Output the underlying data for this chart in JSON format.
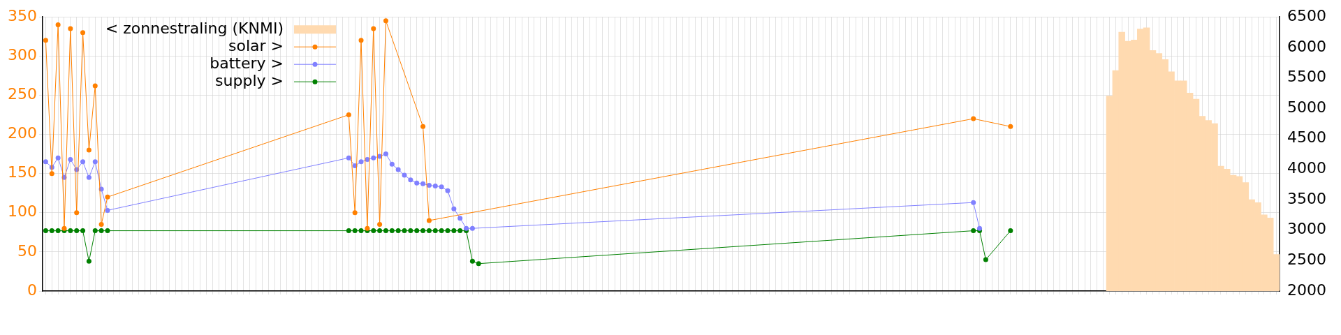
{
  "chart_data": {
    "type": "line",
    "categories": [
      null,
      null,
      null,
      null,
      null,
      null,
      null,
      null,
      null,
      null,
      null,
      null,
      null,
      null,
      null,
      null,
      null,
      null,
      null,
      null,
      null,
      null,
      null,
      null,
      null,
      null,
      null,
      null,
      null,
      null,
      null,
      null,
      null,
      null,
      null,
      null,
      null,
      null,
      null,
      null,
      null,
      null,
      null,
      null,
      null,
      null,
      null,
      null,
      null,
      null,
      null,
      null,
      null,
      null,
      null,
      null,
      null,
      null,
      null,
      null,
      null,
      null,
      null,
      null,
      null,
      null,
      null,
      null,
      null,
      null,
      null,
      null,
      null,
      null,
      null,
      null,
      null,
      null,
      null,
      null,
      null,
      null,
      null,
      null,
      null,
      null,
      null,
      null,
      null,
      null,
      null,
      null,
      null,
      null,
      null,
      null,
      null,
      null,
      null,
      null,
      null,
      null,
      null,
      null,
      null,
      null,
      null,
      null,
      null,
      null,
      null,
      null,
      null,
      null,
      null,
      null,
      null,
      null,
      null,
      null,
      null,
      null,
      null,
      null,
      null,
      null,
      null,
      null,
      null,
      null,
      null,
      null,
      null,
      null,
      null,
      null,
      null,
      null,
      null,
      null,
      null,
      null,
      null,
      null,
      null,
      null,
      null,
      null,
      null,
      null,
      null,
      null,
      null,
      null,
      null,
      null,
      null,
      null,
      null,
      null,
      null,
      null,
      null,
      null,
      null,
      null,
      null,
      null,
      null,
      null,
      null,
      null,
      null,
      null,
      null,
      null,
      null,
      null,
      null,
      null,
      null,
      null,
      null,
      null,
      null,
      null,
      null,
      null,
      null,
      null,
      null,
      null,
      null,
      null,
      null,
      null,
      null,
      null,
      null,
      null
    ],
    "series": [
      {
        "name": "< zonnestraling (KNMI)",
        "type": "bar",
        "axis": "y2",
        "color": "#ffdab0",
        "values": [
          null,
          null,
          null,
          null,
          null,
          null,
          null,
          null,
          null,
          null,
          null,
          null,
          null,
          null,
          null,
          null,
          null,
          null,
          null,
          null,
          null,
          null,
          null,
          null,
          null,
          null,
          null,
          null,
          null,
          null,
          null,
          null,
          null,
          null,
          null,
          null,
          null,
          null,
          null,
          null,
          null,
          null,
          null,
          null,
          null,
          null,
          null,
          null,
          null,
          null,
          null,
          null,
          null,
          null,
          null,
          null,
          null,
          null,
          null,
          null,
          null,
          null,
          null,
          null,
          null,
          null,
          null,
          null,
          null,
          null,
          null,
          null,
          null,
          null,
          null,
          null,
          null,
          null,
          null,
          null,
          null,
          null,
          null,
          null,
          null,
          null,
          null,
          null,
          null,
          null,
          null,
          null,
          null,
          null,
          null,
          null,
          null,
          null,
          null,
          null,
          null,
          null,
          null,
          null,
          null,
          null,
          null,
          null,
          null,
          null,
          null,
          null,
          null,
          null,
          null,
          null,
          null,
          null,
          null,
          null,
          null,
          null,
          null,
          null,
          null,
          null,
          null,
          null,
          null,
          null,
          null,
          null,
          null,
          null,
          null,
          null,
          null,
          null,
          null,
          null,
          null,
          null,
          null,
          null,
          null,
          null,
          null,
          null,
          null,
          null,
          null,
          null,
          null,
          null,
          null,
          null,
          null,
          null,
          null,
          null,
          null,
          null,
          null,
          null,
          null,
          null,
          null,
          null,
          null,
          null,
          null,
          null,
          5200,
          5620,
          6250,
          6100,
          6120,
          6300,
          6320,
          5950,
          5900,
          5800,
          5600,
          5450,
          5450,
          5250,
          5150,
          4870,
          4800,
          4750,
          4050,
          4000,
          3900,
          3880,
          3780,
          3500,
          3450,
          3250,
          3200,
          2600
        ]
      },
      {
        "name": "solar >",
        "color": "#ff8000",
        "values": [
          320,
          150,
          340,
          80,
          335,
          100,
          330,
          180,
          262,
          85,
          120,
          null,
          null,
          null,
          null,
          null,
          null,
          null,
          null,
          null,
          null,
          null,
          null,
          null,
          null,
          null,
          null,
          null,
          null,
          null,
          null,
          null,
          null,
          null,
          null,
          null,
          null,
          null,
          null,
          null,
          null,
          null,
          null,
          null,
          null,
          null,
          null,
          null,
          null,
          225,
          100,
          320,
          80,
          335,
          85,
          345,
          null,
          null,
          null,
          null,
          null,
          210,
          90,
          null,
          null,
          null,
          null,
          null,
          null,
          null,
          null,
          null,
          null,
          null,
          null,
          null,
          null,
          null,
          null,
          null,
          null,
          null,
          null,
          null,
          null,
          null,
          null,
          null,
          null,
          null,
          null,
          null,
          null,
          null,
          null,
          null,
          null,
          null,
          null,
          null,
          null,
          null,
          null,
          null,
          null,
          null,
          null,
          null,
          null,
          null,
          null,
          null,
          null,
          null,
          null,
          null,
          null,
          null,
          null,
          null,
          null,
          null,
          null,
          null,
          null,
          null,
          null,
          null,
          null,
          null,
          null,
          null,
          null,
          null,
          null,
          null,
          null,
          null,
          null,
          null,
          null,
          null,
          null,
          null,
          null,
          null,
          null,
          null,
          null,
          null,
          220,
          null,
          null,
          null,
          null,
          null,
          210,
          null,
          null,
          null,
          null,
          null,
          null,
          null,
          null,
          null,
          null,
          null,
          null,
          null,
          null,
          null,
          null,
          null,
          null,
          null,
          null,
          null,
          null,
          null,
          null,
          null,
          null,
          null,
          null,
          null,
          null,
          null,
          null,
          null,
          null,
          null,
          null,
          null,
          null,
          null,
          null,
          null,
          null,
          null
        ]
      },
      {
        "name": "battery >",
        "color": "#8080ff",
        "values": [
          165,
          158,
          170,
          145,
          168,
          155,
          165,
          145,
          165,
          130,
          103,
          null,
          null,
          null,
          null,
          null,
          null,
          null,
          null,
          null,
          null,
          null,
          null,
          null,
          null,
          null,
          null,
          null,
          null,
          null,
          null,
          null,
          null,
          null,
          null,
          null,
          null,
          null,
          null,
          null,
          null,
          null,
          null,
          null,
          null,
          null,
          null,
          null,
          null,
          170,
          160,
          165,
          168,
          170,
          172,
          175,
          162,
          155,
          148,
          142,
          138,
          137,
          135,
          134,
          133,
          128,
          105,
          93,
          80,
          80,
          null,
          null,
          null,
          null,
          null,
          null,
          null,
          null,
          null,
          null,
          null,
          null,
          null,
          null,
          null,
          null,
          null,
          null,
          null,
          null,
          null,
          null,
          null,
          null,
          null,
          null,
          null,
          null,
          null,
          null,
          null,
          null,
          null,
          null,
          null,
          null,
          null,
          null,
          null,
          null,
          null,
          null,
          null,
          null,
          null,
          null,
          null,
          null,
          null,
          null,
          null,
          null,
          null,
          null,
          null,
          null,
          null,
          null,
          null,
          null,
          null,
          null,
          null,
          null,
          null,
          null,
          null,
          null,
          null,
          null,
          null,
          null,
          null,
          null,
          null,
          null,
          null,
          null,
          null,
          null,
          113,
          80,
          null,
          null,
          null,
          null,
          null,
          null,
          null,
          null,
          null,
          null,
          null,
          null,
          null,
          null,
          null,
          null,
          null,
          null,
          null,
          null,
          null,
          null,
          null,
          null,
          null,
          null,
          null,
          null,
          null,
          null,
          null,
          null,
          null,
          null,
          null,
          null,
          null,
          null,
          null,
          null,
          null,
          null,
          null,
          null,
          null,
          null,
          null,
          null
        ]
      },
      {
        "name": "supply >",
        "color": "#008000",
        "values": [
          77,
          77,
          77,
          77,
          77,
          77,
          77,
          38,
          77,
          77,
          77,
          null,
          null,
          null,
          null,
          null,
          null,
          null,
          null,
          null,
          null,
          null,
          null,
          null,
          null,
          null,
          null,
          null,
          null,
          null,
          null,
          null,
          null,
          null,
          null,
          null,
          null,
          null,
          null,
          null,
          null,
          null,
          null,
          null,
          null,
          null,
          null,
          null,
          null,
          77,
          77,
          77,
          77,
          77,
          77,
          77,
          77,
          77,
          77,
          77,
          77,
          77,
          77,
          77,
          77,
          77,
          77,
          77,
          77,
          38,
          35,
          null,
          null,
          null,
          null,
          null,
          null,
          null,
          null,
          null,
          null,
          null,
          null,
          null,
          null,
          null,
          null,
          null,
          null,
          null,
          null,
          null,
          null,
          null,
          null,
          null,
          null,
          null,
          null,
          null,
          null,
          null,
          null,
          null,
          null,
          null,
          null,
          null,
          null,
          null,
          null,
          null,
          null,
          null,
          null,
          null,
          null,
          null,
          null,
          null,
          null,
          null,
          null,
          null,
          null,
          null,
          null,
          null,
          null,
          null,
          null,
          null,
          null,
          null,
          null,
          null,
          null,
          null,
          null,
          null,
          null,
          null,
          null,
          null,
          null,
          null,
          null,
          null,
          null,
          null,
          77,
          77,
          40,
          null,
          null,
          null,
          77,
          null,
          null,
          null,
          null,
          null,
          null,
          null,
          null,
          null,
          null,
          null,
          null,
          null,
          null,
          null,
          null,
          null,
          null,
          null,
          null,
          null,
          null,
          null,
          null,
          null,
          null,
          null,
          null,
          null,
          null,
          null,
          null,
          null,
          null,
          null,
          null,
          null,
          null,
          null,
          null,
          null,
          null,
          null
        ]
      }
    ],
    "ylim": [
      0,
      350
    ],
    "yticks": [
      0,
      50,
      100,
      150,
      200,
      250,
      300,
      350
    ],
    "y2lim": [
      2000,
      6500
    ],
    "y2ticks": [
      2000,
      2500,
      3000,
      3500,
      4000,
      4500,
      5000,
      5500,
      6000,
      6500
    ],
    "grid": true,
    "legend": "top left",
    "marker": "circle",
    "tick_labels": "y"
  }
}
